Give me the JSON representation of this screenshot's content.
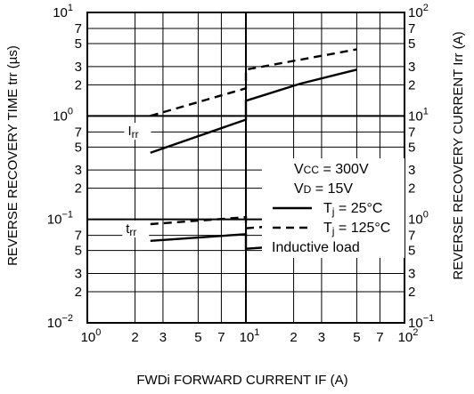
{
  "chart_data": {
    "type": "line",
    "xlabel": "FWDi FORWARD CURRENT  IF (A)",
    "ylabel_left": "REVERSE RECOVERY TIME  trr (µs)",
    "ylabel_right": "REVERSE RECOVERY CURRENT  Irr (A)",
    "x_scale": "log",
    "xlim": [
      1,
      100
    ],
    "y_left_scale": "log",
    "ylim_left": [
      0.01,
      10
    ],
    "y_right_scale": "log",
    "ylim_right": [
      0.1,
      100
    ],
    "grid": true,
    "x_ticks": [
      {
        "value": 1,
        "label": "10",
        "exp": "0"
      },
      {
        "value": 2,
        "label": "2",
        "exp": ""
      },
      {
        "value": 3,
        "label": "3",
        "exp": ""
      },
      {
        "value": 5,
        "label": "5",
        "exp": ""
      },
      {
        "value": 7,
        "label": "7",
        "exp": ""
      },
      {
        "value": 10,
        "label": "10",
        "exp": "1"
      },
      {
        "value": 20,
        "label": "2",
        "exp": ""
      },
      {
        "value": 30,
        "label": "3",
        "exp": ""
      },
      {
        "value": 50,
        "label": "5",
        "exp": ""
      },
      {
        "value": 70,
        "label": "7",
        "exp": ""
      },
      {
        "value": 100,
        "label": "10",
        "exp": "2"
      }
    ],
    "y_left_ticks": [
      {
        "value": 10,
        "label": "10",
        "exp": "1"
      },
      {
        "value": 7,
        "label": "7",
        "exp": ""
      },
      {
        "value": 5,
        "label": "5",
        "exp": ""
      },
      {
        "value": 3,
        "label": "3",
        "exp": ""
      },
      {
        "value": 2,
        "label": "2",
        "exp": ""
      },
      {
        "value": 1,
        "label": "10",
        "exp": "0"
      },
      {
        "value": 0.7,
        "label": "7",
        "exp": ""
      },
      {
        "value": 0.5,
        "label": "5",
        "exp": ""
      },
      {
        "value": 0.3,
        "label": "3",
        "exp": ""
      },
      {
        "value": 0.2,
        "label": "2",
        "exp": ""
      },
      {
        "value": 0.1,
        "label": "10",
        "exp": "−1"
      },
      {
        "value": 0.07,
        "label": "7",
        "exp": ""
      },
      {
        "value": 0.05,
        "label": "5",
        "exp": ""
      },
      {
        "value": 0.03,
        "label": "3",
        "exp": ""
      },
      {
        "value": 0.02,
        "label": "2",
        "exp": ""
      },
      {
        "value": 0.01,
        "label": "10",
        "exp": "−2"
      }
    ],
    "y_right_ticks": [
      {
        "value": 100,
        "label": "10",
        "exp": "2"
      },
      {
        "value": 70,
        "label": "7",
        "exp": ""
      },
      {
        "value": 50,
        "label": "5",
        "exp": ""
      },
      {
        "value": 30,
        "label": "3",
        "exp": ""
      },
      {
        "value": 20,
        "label": "2",
        "exp": ""
      },
      {
        "value": 10,
        "label": "10",
        "exp": "1"
      },
      {
        "value": 7,
        "label": "7",
        "exp": ""
      },
      {
        "value": 5,
        "label": "5",
        "exp": ""
      },
      {
        "value": 3,
        "label": "3",
        "exp": ""
      },
      {
        "value": 2,
        "label": "2",
        "exp": ""
      },
      {
        "value": 1,
        "label": "10",
        "exp": "0"
      },
      {
        "value": 0.7,
        "label": "7",
        "exp": ""
      },
      {
        "value": 0.5,
        "label": "5",
        "exp": ""
      },
      {
        "value": 0.3,
        "label": "3",
        "exp": ""
      },
      {
        "value": 0.2,
        "label": "2",
        "exp": ""
      },
      {
        "value": 0.1,
        "label": "10",
        "exp": "−1"
      }
    ],
    "series": [
      {
        "axis": "right",
        "style": "dashed",
        "label": "",
        "x": [
          2.5,
          10,
          10,
          50
        ],
        "y": [
          10,
          18.5,
          28,
          44
        ]
      },
      {
        "axis": "right",
        "style": "solid",
        "label": "Irr",
        "x": [
          2.5,
          10,
          10,
          22,
          50
        ],
        "y": [
          4.4,
          9.2,
          14,
          20.5,
          28
        ]
      },
      {
        "axis": "left",
        "style": "dashed",
        "label": "",
        "x": [
          2.5,
          10,
          10,
          50
        ],
        "y": [
          0.09,
          0.105,
          0.082,
          0.1
        ]
      },
      {
        "axis": "left",
        "style": "solid",
        "label": "trr",
        "x": [
          2.5,
          10,
          10,
          20,
          50
        ],
        "y": [
          0.062,
          0.072,
          0.052,
          0.056,
          0.064
        ]
      }
    ],
    "curve_labels": [
      {
        "text": "Irr",
        "x": 1.8,
        "axis": "right",
        "y": 6.5
      },
      {
        "text": "trr",
        "x": 1.75,
        "axis": "left",
        "y": 0.074
      }
    ],
    "legend": {
      "placement": "center-right",
      "lines": [
        {
          "label": "VCC = 300V",
          "style": "none"
        },
        {
          "label": "VD = 15V",
          "style": "none"
        },
        {
          "label": "Tj = 25°C",
          "style": "solid"
        },
        {
          "label": "Tj = 125°C",
          "style": "dashed"
        },
        {
          "label": "Inductive load",
          "style": "none"
        }
      ]
    }
  }
}
